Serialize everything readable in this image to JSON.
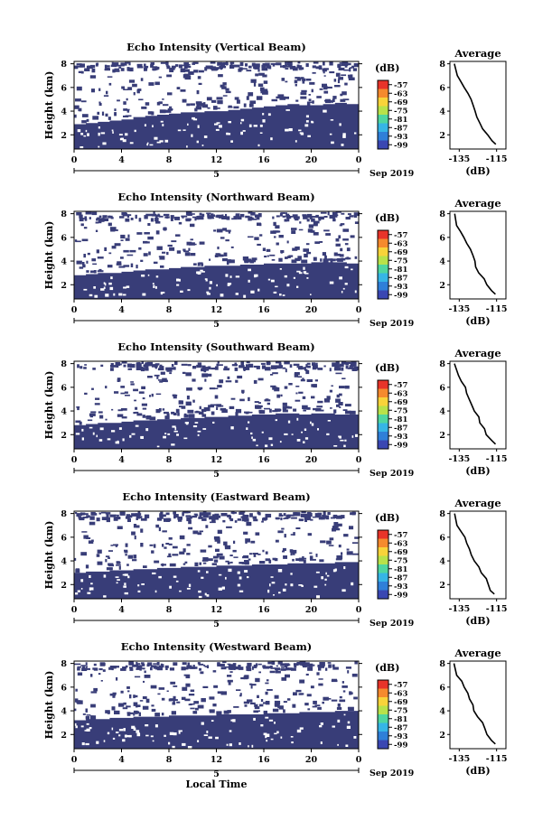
{
  "chart_data": [
    {
      "type": "heatmap",
      "title": "Echo Intensity (Vertical Beam)",
      "ylabel": "Height (km)",
      "xlabel": "",
      "x_ticks": [
        "0",
        "4",
        "8",
        "12",
        "16",
        "20",
        "0"
      ],
      "y_ticks": [
        "2",
        "4",
        "6",
        "8"
      ],
      "date_marker": "5",
      "date_label": "Sep 2019",
      "colorbar_label": "(dB)",
      "colorbar_ticks": [
        "-57",
        "-63",
        "-69",
        "-75",
        "-81",
        "-87",
        "-93",
        "-99"
      ],
      "xlim": [
        0,
        24
      ],
      "ylim": [
        0.8,
        8.2
      ],
      "base_top_km": [
        2.9,
        3.0,
        3.1,
        3.2,
        3.3,
        3.5,
        3.6,
        3.7,
        3.8,
        3.9,
        3.9,
        4.0,
        4.0,
        4.1,
        4.2,
        4.3,
        4.4,
        4.5,
        4.6,
        4.5,
        4.5,
        4.6,
        4.7,
        4.6
      ],
      "profile": {
        "title": "Average",
        "xlabel": "(dB)",
        "x_ticks": [
          "-135",
          "-115"
        ],
        "y_ticks": [
          "2",
          "4",
          "6",
          "8"
        ],
        "height_km": [
          8,
          7,
          6.5,
          6,
          5.5,
          5,
          4.5,
          4,
          3.5,
          3,
          2.5,
          2,
          1.5,
          1.2
        ],
        "value_db": [
          -138,
          -136,
          -134,
          -132,
          -130,
          -129,
          -128,
          -127,
          -126,
          -124,
          -122,
          -120,
          -118,
          -116
        ]
      }
    },
    {
      "type": "heatmap",
      "title": "Echo Intensity (Northward Beam)",
      "ylabel": "Height (km)",
      "xlabel": "",
      "x_ticks": [
        "0",
        "4",
        "8",
        "12",
        "16",
        "20",
        "0"
      ],
      "y_ticks": [
        "2",
        "4",
        "6",
        "8"
      ],
      "date_marker": "5",
      "date_label": "Sep 2019",
      "colorbar_label": "(dB)",
      "colorbar_ticks": [
        "-57",
        "-63",
        "-69",
        "-75",
        "-81",
        "-87",
        "-93",
        "-99"
      ],
      "xlim": [
        0,
        24
      ],
      "ylim": [
        0.8,
        8.2
      ],
      "base_top_km": [
        2.8,
        2.9,
        3.0,
        3.0,
        3.1,
        3.2,
        3.3,
        3.3,
        3.4,
        3.5,
        3.5,
        3.6,
        3.6,
        3.6,
        3.7,
        3.7,
        3.8,
        3.8,
        3.8,
        3.8,
        3.9,
        3.9,
        3.9,
        3.8
      ],
      "profile": {
        "title": "Average",
        "xlabel": "(dB)",
        "x_ticks": [
          "-135",
          "-115"
        ],
        "y_ticks": [
          "2",
          "4",
          "6",
          "8"
        ],
        "height_km": [
          8,
          7,
          6.5,
          6,
          5.5,
          5,
          4.5,
          4,
          3.5,
          3,
          2.5,
          2,
          1.5,
          1.2
        ],
        "value_db": [
          -138,
          -136,
          -134,
          -132,
          -131,
          -129,
          -128,
          -127,
          -126,
          -124,
          -122,
          -120,
          -118,
          -116
        ]
      }
    },
    {
      "type": "heatmap",
      "title": "Echo Intensity (Southward Beam)",
      "ylabel": "Height (km)",
      "xlabel": "",
      "x_ticks": [
        "0",
        "4",
        "8",
        "12",
        "16",
        "20",
        "0"
      ],
      "y_ticks": [
        "2",
        "4",
        "6",
        "8"
      ],
      "date_marker": "5",
      "date_label": "Sep 2019",
      "colorbar_label": "(dB)",
      "colorbar_ticks": [
        "-57",
        "-63",
        "-69",
        "-75",
        "-81",
        "-87",
        "-93",
        "-99"
      ],
      "xlim": [
        0,
        24
      ],
      "ylim": [
        0.8,
        8.2
      ],
      "base_top_km": [
        2.8,
        2.9,
        3.0,
        3.0,
        3.1,
        3.2,
        3.2,
        3.3,
        3.3,
        3.4,
        3.4,
        3.5,
        3.5,
        3.6,
        3.6,
        3.7,
        3.7,
        3.8,
        3.8,
        3.7,
        3.8,
        3.8,
        3.7,
        3.7
      ],
      "profile": {
        "title": "Average",
        "xlabel": "(dB)",
        "x_ticks": [
          "-135",
          "-115"
        ],
        "y_ticks": [
          "2",
          "4",
          "6",
          "8"
        ],
        "height_km": [
          8,
          7,
          6.5,
          6,
          5.5,
          5,
          4.5,
          4,
          3.5,
          3,
          2.5,
          2,
          1.5,
          1.2
        ],
        "value_db": [
          -138,
          -136,
          -134,
          -132,
          -131,
          -130,
          -128,
          -127,
          -125,
          -124,
          -122,
          -120,
          -118,
          -116
        ]
      }
    },
    {
      "type": "heatmap",
      "title": "Echo Intensity (Eastward Beam)",
      "ylabel": "Height (km)",
      "xlabel": "",
      "x_ticks": [
        "0",
        "4",
        "8",
        "12",
        "16",
        "20",
        "0"
      ],
      "y_ticks": [
        "2",
        "4",
        "6",
        "8"
      ],
      "date_marker": "5",
      "date_label": "Sep 2019",
      "colorbar_label": "(dB)",
      "colorbar_ticks": [
        "-57",
        "-63",
        "-69",
        "-75",
        "-81",
        "-87",
        "-93",
        "-99"
      ],
      "xlim": [
        0,
        24
      ],
      "ylim": [
        0.8,
        8.2
      ],
      "base_top_km": [
        3.0,
        3.1,
        3.1,
        3.2,
        3.2,
        3.3,
        3.3,
        3.4,
        3.4,
        3.5,
        3.5,
        3.5,
        3.6,
        3.6,
        3.6,
        3.7,
        3.7,
        3.7,
        3.8,
        3.8,
        3.8,
        3.8,
        3.9,
        3.9
      ],
      "profile": {
        "title": "Average",
        "xlabel": "(dB)",
        "x_ticks": [
          "-135",
          "-115"
        ],
        "y_ticks": [
          "2",
          "4",
          "6",
          "8"
        ],
        "height_km": [
          8,
          7,
          6.5,
          6,
          5.5,
          5,
          4.5,
          4,
          3.5,
          3,
          2.5,
          2,
          1.5,
          1.2
        ],
        "value_db": [
          -138,
          -136,
          -134,
          -132,
          -131,
          -129,
          -128,
          -127,
          -125,
          -123,
          -121,
          -120,
          -118,
          -116
        ]
      }
    },
    {
      "type": "heatmap",
      "title": "Echo Intensity (Westward Beam)",
      "ylabel": "Height (km)",
      "xlabel": "Local Time",
      "x_ticks": [
        "0",
        "4",
        "8",
        "12",
        "16",
        "20",
        "0"
      ],
      "y_ticks": [
        "2",
        "4",
        "6",
        "8"
      ],
      "date_marker": "5",
      "date_label": "Sep 2019",
      "colorbar_label": "(dB)",
      "colorbar_ticks": [
        "-57",
        "-63",
        "-69",
        "-75",
        "-81",
        "-87",
        "-93",
        "-99"
      ],
      "xlim": [
        0,
        24
      ],
      "ylim": [
        0.8,
        8.2
      ],
      "base_top_km": [
        3.2,
        3.3,
        3.3,
        3.4,
        3.4,
        3.5,
        3.5,
        3.5,
        3.6,
        3.6,
        3.6,
        3.6,
        3.7,
        3.7,
        3.7,
        3.7,
        3.8,
        3.8,
        3.8,
        3.9,
        3.9,
        3.9,
        4.0,
        4.0
      ],
      "profile": {
        "title": "Average",
        "xlabel": "(dB)",
        "x_ticks": [
          "-135",
          "-115"
        ],
        "y_ticks": [
          "2",
          "4",
          "6",
          "8"
        ],
        "height_km": [
          8,
          7,
          6.5,
          6,
          5.5,
          5,
          4.5,
          4,
          3.5,
          3,
          2.5,
          2,
          1.5,
          1.2
        ],
        "value_db": [
          -138,
          -136,
          -134,
          -132,
          -131,
          -129,
          -128,
          -127,
          -125,
          -123,
          -121,
          -120,
          -118,
          -116
        ]
      }
    }
  ],
  "colors": {
    "low": "#383d78",
    "scale": [
      "#e8342a",
      "#f58a2e",
      "#f8d33a",
      "#b8e24a",
      "#4fd6a0",
      "#36b5e6",
      "#2f7fd8",
      "#3a47b2"
    ],
    "axis": "#000000",
    "background": "#ffffff"
  }
}
